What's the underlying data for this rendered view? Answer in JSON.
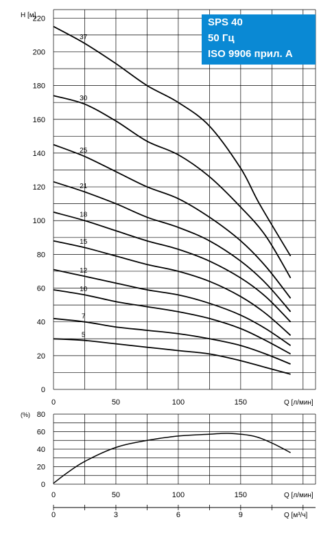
{
  "info_box": {
    "line1": "SPS 40",
    "line2": "50 Гц",
    "line3": "ISO 9906 прил. A",
    "background": "#0a89d4",
    "text_color": "#ffffff"
  },
  "chart_data": [
    {
      "type": "line",
      "ylabel": "H [м]",
      "xlabel": "Q [л/мин]",
      "xlim": [
        0,
        210
      ],
      "ylim": [
        0,
        225
      ],
      "xticks": [
        "0",
        "50",
        "100",
        "150"
      ],
      "yticks": [
        "0",
        "20",
        "40",
        "60",
        "80",
        "100",
        "120",
        "140",
        "160",
        "180",
        "200",
        "220"
      ],
      "grid": true,
      "series": [
        {
          "name": "37",
          "x": [
            0,
            25,
            50,
            75,
            100,
            125,
            150,
            165,
            190
          ],
          "y": [
            215,
            205,
            193,
            180,
            170,
            156,
            131,
            110,
            79
          ]
        },
        {
          "name": "30",
          "x": [
            0,
            25,
            50,
            75,
            100,
            125,
            150,
            170,
            190
          ],
          "y": [
            174,
            169,
            159,
            147,
            139,
            126,
            108,
            91,
            66
          ]
        },
        {
          "name": "25",
          "x": [
            0,
            25,
            50,
            75,
            100,
            125,
            150,
            170,
            190
          ],
          "y": [
            145,
            138,
            129,
            120,
            113,
            102,
            88,
            73,
            54
          ]
        },
        {
          "name": "21",
          "x": [
            0,
            25,
            50,
            75,
            100,
            125,
            150,
            170,
            190
          ],
          "y": [
            123,
            117,
            110,
            102,
            96,
            88,
            76,
            63,
            46
          ]
        },
        {
          "name": "18",
          "x": [
            0,
            25,
            50,
            75,
            100,
            125,
            150,
            170,
            190
          ],
          "y": [
            105,
            100,
            94,
            88,
            83,
            76,
            66,
            55,
            40
          ]
        },
        {
          "name": "15",
          "x": [
            0,
            25,
            50,
            75,
            100,
            125,
            150,
            170,
            190
          ],
          "y": [
            88,
            84,
            79,
            74,
            70,
            64,
            55,
            45,
            32
          ]
        },
        {
          "name": "12",
          "x": [
            0,
            25,
            50,
            75,
            100,
            125,
            150,
            170,
            190
          ],
          "y": [
            71,
            67,
            63,
            59,
            56,
            51,
            44,
            36,
            26
          ]
        },
        {
          "name": "10",
          "x": [
            0,
            25,
            50,
            75,
            100,
            125,
            150,
            170,
            190
          ],
          "y": [
            59,
            56,
            52,
            49,
            46,
            42,
            36,
            29,
            21
          ]
        },
        {
          "name": "7",
          "x": [
            0,
            25,
            50,
            75,
            100,
            125,
            150,
            170,
            190
          ],
          "y": [
            42,
            40,
            37,
            35,
            33,
            30,
            26,
            21,
            15
          ]
        },
        {
          "name": "5",
          "x": [
            0,
            25,
            50,
            75,
            100,
            125,
            150,
            170,
            190
          ],
          "y": [
            30,
            29,
            27,
            25,
            23,
            21,
            17,
            13,
            9
          ]
        }
      ]
    },
    {
      "type": "line",
      "ylabel": "(%)",
      "xlabel": "Q [л/мин]",
      "xlim": [
        0,
        210
      ],
      "ylim": [
        0,
        80
      ],
      "xticks": [
        "0",
        "50",
        "100",
        "150"
      ],
      "yticks": [
        "0",
        "20",
        "40",
        "60",
        "80"
      ],
      "grid": true,
      "series": [
        {
          "x": [
            0,
            10,
            25,
            50,
            75,
            100,
            125,
            140,
            160,
            175,
            190
          ],
          "y": [
            1,
            12,
            26,
            42,
            50,
            55,
            57,
            58,
            55,
            47,
            36
          ]
        }
      ]
    },
    {
      "type": "axis",
      "xlabel": "Q [м³/ч]",
      "xticks": [
        "0",
        "3",
        "6",
        "9"
      ],
      "xtick_values": [
        0,
        3,
        6,
        9
      ],
      "xlim": [
        0,
        12.6
      ]
    }
  ]
}
